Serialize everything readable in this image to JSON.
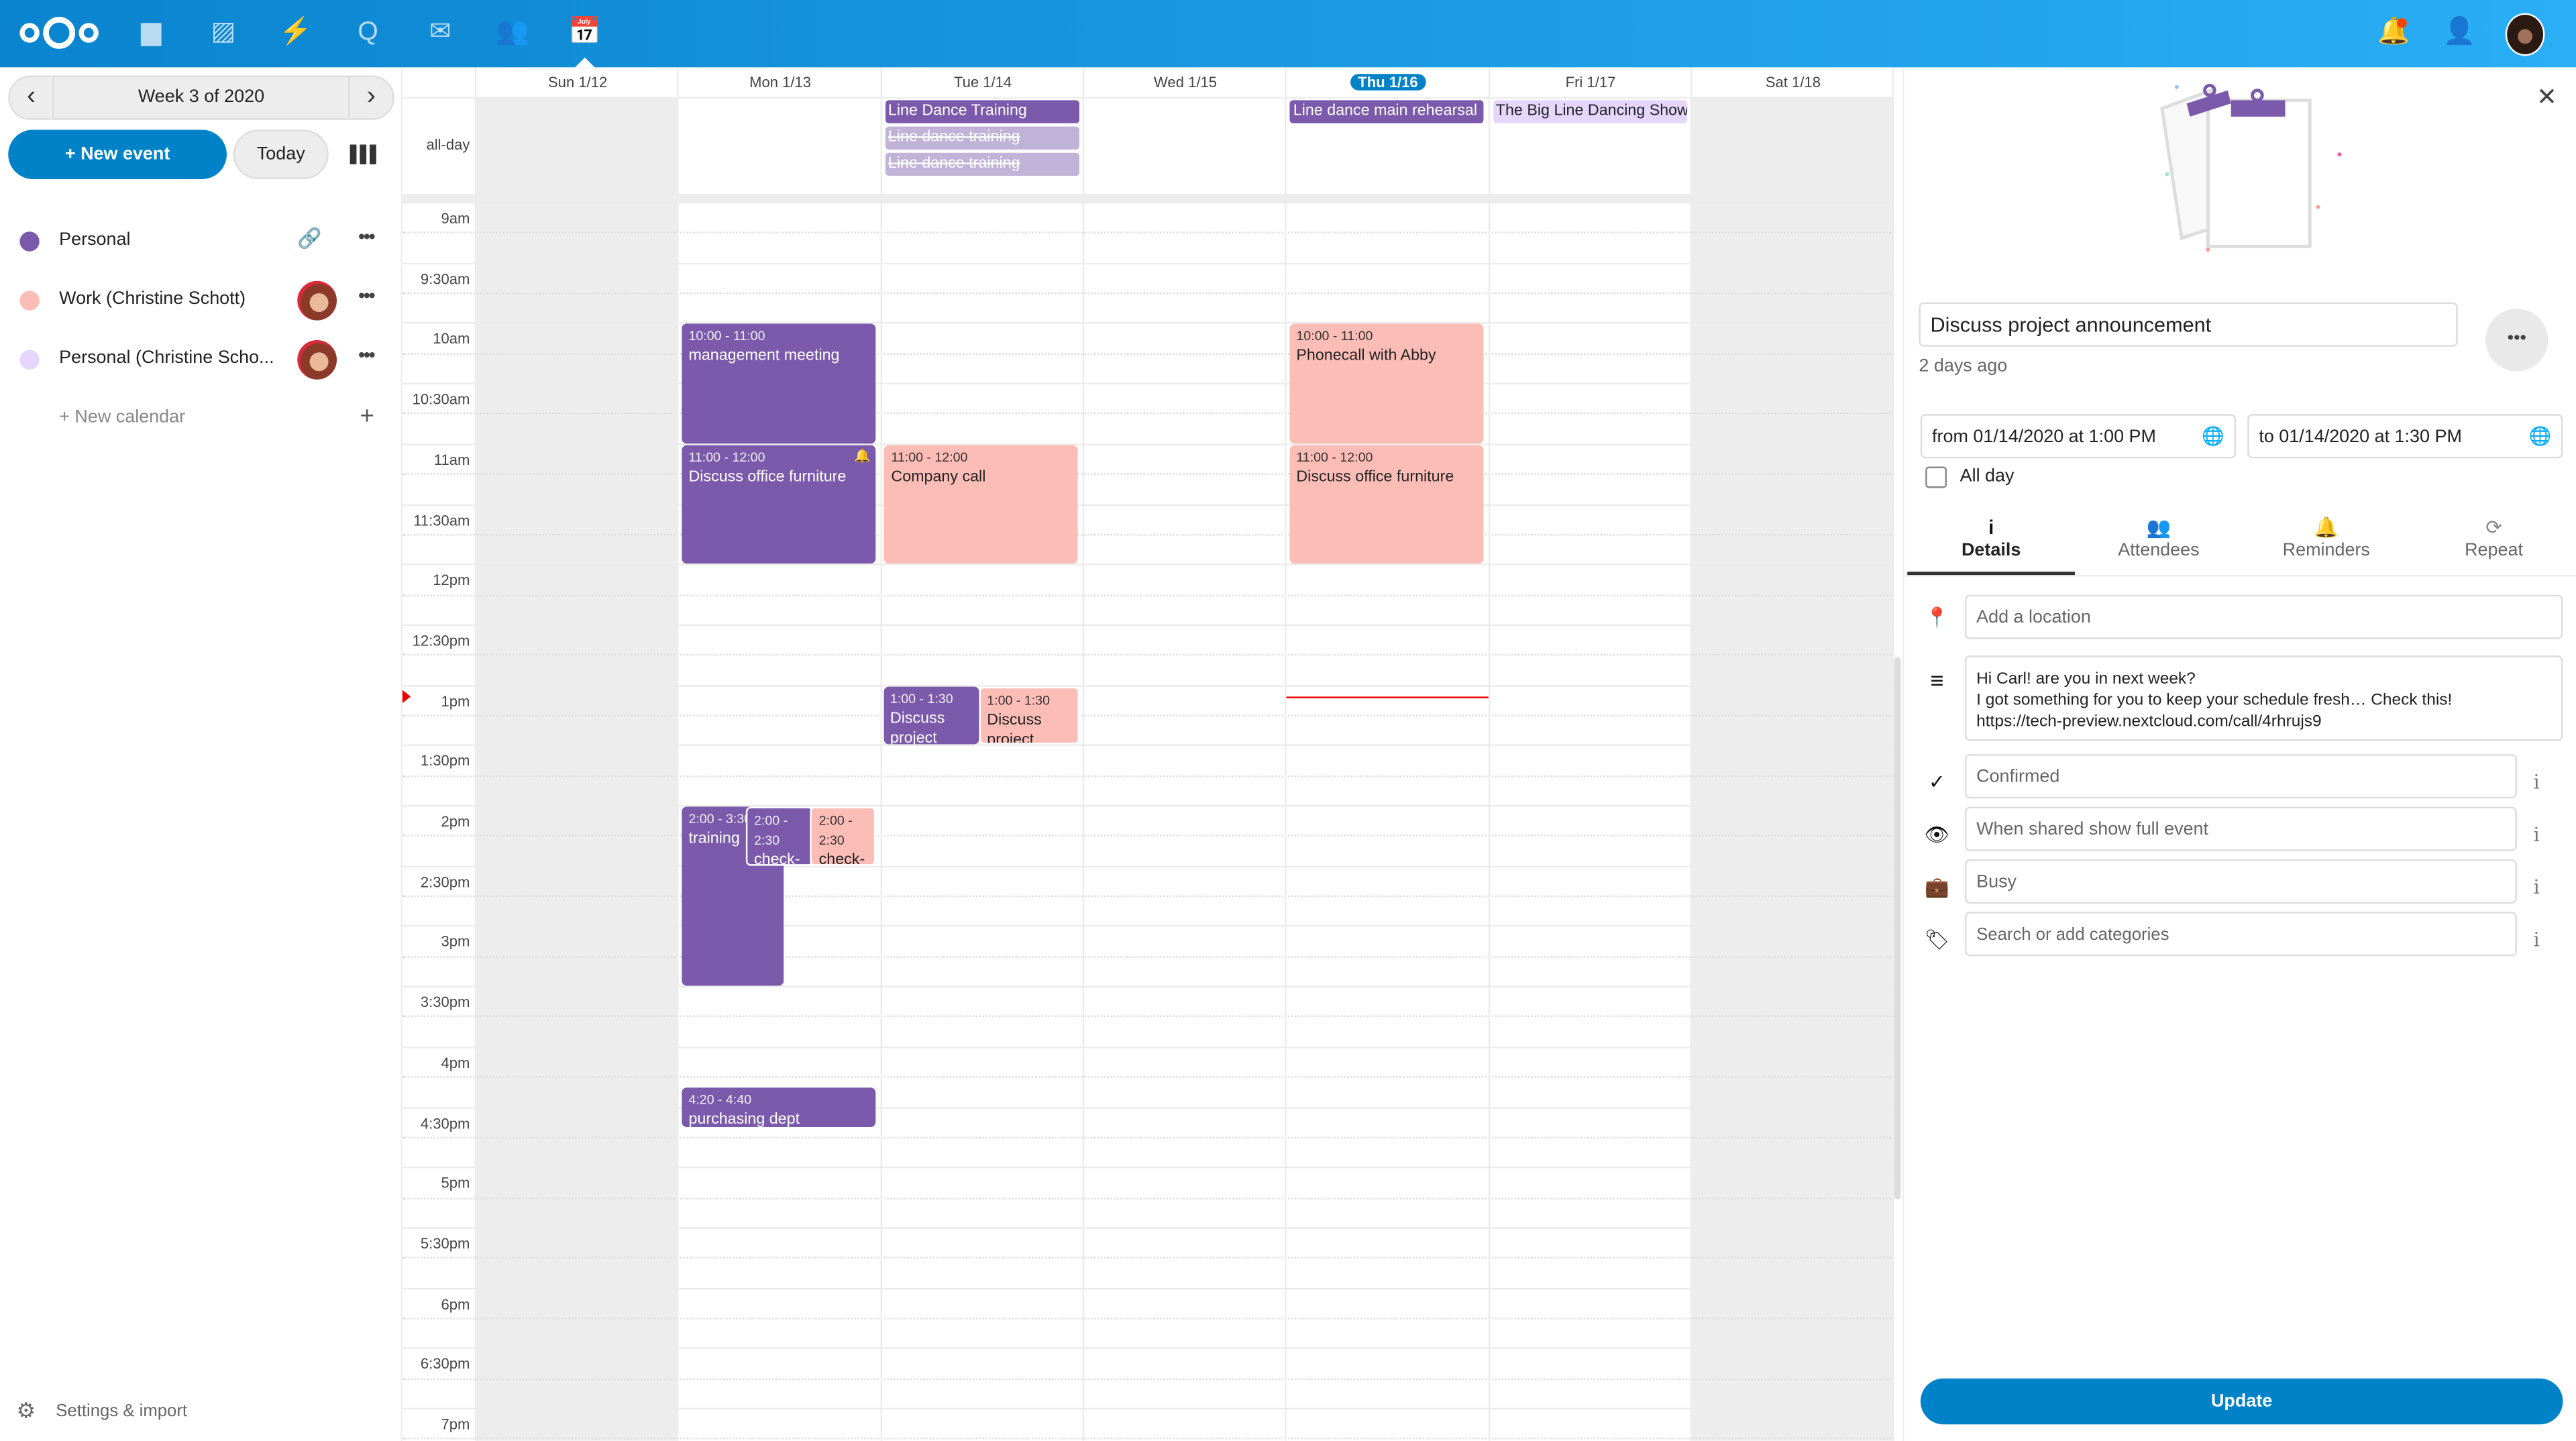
{
  "header": {
    "apps": [
      {
        "name": "files",
        "glyph": "▆"
      },
      {
        "name": "photos",
        "glyph": "▨"
      },
      {
        "name": "activity",
        "glyph": "⚡"
      },
      {
        "name": "talk",
        "glyph": "Q"
      },
      {
        "name": "mail",
        "glyph": "✉"
      },
      {
        "name": "contacts",
        "glyph": "👥"
      },
      {
        "name": "calendar",
        "glyph": "📅"
      }
    ],
    "active_app": "calendar",
    "notification_badge_color": "#ff4400"
  },
  "sidebar": {
    "week_label": "Week 3 of 2020",
    "prev_glyph": "‹",
    "next_glyph": "›",
    "new_event": "+ New event",
    "today": "Today",
    "calendars": [
      {
        "name": "Personal",
        "color": "#7b5aab",
        "action": "link"
      },
      {
        "name": "Work (Christine Schott)",
        "color": "#fcbdb7",
        "action": "shared"
      },
      {
        "name": "Personal (Christine Scho...",
        "color": "#e6d6fc",
        "action": "shared"
      }
    ],
    "new_calendar": "+ New calendar",
    "settings": "Settings & import"
  },
  "calendar": {
    "all_day_label": "all-day",
    "days": [
      {
        "label": "Sun 1/12",
        "weekend": true
      },
      {
        "label": "Mon 1/13"
      },
      {
        "label": "Tue 1/14"
      },
      {
        "label": "Wed 1/15"
      },
      {
        "label": "Thu 1/16",
        "today": true
      },
      {
        "label": "Fri 1/17"
      },
      {
        "label": "Sat 1/18",
        "weekend": true
      }
    ],
    "time_labels": [
      "9am",
      "9:30am",
      "10am",
      "10:30am",
      "11am",
      "11:30am",
      "12pm",
      "12:30pm",
      "1pm",
      "1:30pm",
      "2pm",
      "2:30pm",
      "3pm",
      "3:30pm",
      "4pm",
      "4:30pm",
      "5pm",
      "5:30pm",
      "6pm",
      "6:30pm",
      "7pm"
    ],
    "first_hour": 9,
    "now_hour": 13.1,
    "colors": {
      "purple": "#7b5aab",
      "pink": "#fcbdb7",
      "lavender": "#e6d6fc",
      "light_purple": "#c1b2d7"
    },
    "all_day_events": [
      {
        "day": 2,
        "title": "Line Dance Training",
        "color": "purple",
        "strike": false
      },
      {
        "day": 2,
        "title": "Line dance training",
        "color": "light_purple",
        "strike": true
      },
      {
        "day": 2,
        "title": "Line dance training",
        "color": "light_purple",
        "strike": true
      },
      {
        "day": 4,
        "title": "Line dance main rehearsal",
        "color": "purple",
        "strike": false
      },
      {
        "day": 5,
        "title": "The Big Line Dancing Show",
        "color": "lavender",
        "strike": false
      }
    ],
    "events": [
      {
        "day": 1,
        "start": 10,
        "end": 11,
        "time": "10:00 - 11:00",
        "title": "management meeting",
        "color": "purple"
      },
      {
        "day": 1,
        "start": 11,
        "end": 12,
        "time": "11:00 - 12:00",
        "title": "Discuss office furniture",
        "color": "purple",
        "bell": true
      },
      {
        "day": 2,
        "start": 11,
        "end": 12,
        "time": "11:00 - 12:00",
        "title": "Company call",
        "color": "pink"
      },
      {
        "day": 4,
        "start": 10,
        "end": 11,
        "time": "10:00 - 11:00",
        "title": "Phonecall with Abby",
        "color": "pink"
      },
      {
        "day": 4,
        "start": 11,
        "end": 12,
        "time": "11:00 - 12:00",
        "title": "Discuss office furniture",
        "color": "pink"
      },
      {
        "day": 2,
        "start": 13,
        "end": 13.5,
        "time": "1:00 - 1:30",
        "title": "Discuss project announcement",
        "color": "purple"
      },
      {
        "day": 2,
        "start": 13,
        "end": 13.5,
        "time": "1:00 - 1:30",
        "title": "Discuss project announcement",
        "color": "pink"
      },
      {
        "day": 1,
        "start": 14,
        "end": 15.5,
        "time": "2:00 - 3:30",
        "title": "training",
        "color": "purple"
      },
      {
        "day": 1,
        "start": 14,
        "end": 14.5,
        "time": "2:00 - 2:30",
        "title": "check-in",
        "color": "purple"
      },
      {
        "day": 1,
        "start": 14,
        "end": 14.5,
        "time": "2:00 - 2:30",
        "title": "check-in",
        "color": "pink"
      },
      {
        "day": 1,
        "start": 16.333,
        "end": 16.667,
        "time": "4:20 - 4:40",
        "title": "purchasing dept",
        "color": "purple"
      }
    ]
  },
  "panel": {
    "title": "Discuss project announcement",
    "modified": "2 days ago",
    "from": "from 01/14/2020 at 1:00 PM",
    "to": "to 01/14/2020 at 1:30 PM",
    "all_day": "All day",
    "all_day_checked": false,
    "tabs": [
      {
        "label": "Details",
        "glyph": "i",
        "active": true
      },
      {
        "label": "Attendees",
        "glyph": "👥"
      },
      {
        "label": "Reminders",
        "glyph": "🔔"
      },
      {
        "label": "Repeat",
        "glyph": "⟳"
      }
    ],
    "location_placeholder": "Add a location",
    "description": "Hi Carl! are you in next week?\nI got something for you to keep your schedule fresh… Check this!\nhttps://tech-preview.nextcloud.com/call/4rhrujs9",
    "status": "Confirmed",
    "visibility": "When shared show full event",
    "availability": "Busy",
    "categories_placeholder": "Search or add categories",
    "update": "Update"
  }
}
